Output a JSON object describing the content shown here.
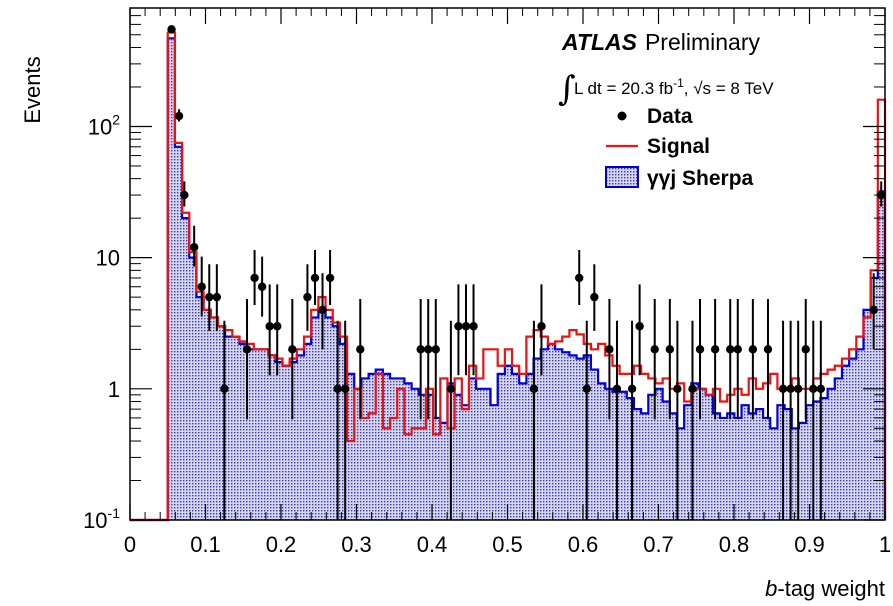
{
  "chart_data": {
    "type": "histogram",
    "xlabel_italic": "b",
    "xlabel_rest": "-tag weight",
    "ylabel": "Events",
    "xlim": [
      0,
      1
    ],
    "ylim": [
      0.1,
      800
    ],
    "log_y": true,
    "x_ticks": [
      "0",
      "0.1",
      "0.2",
      "0.3",
      "0.4",
      "0.5",
      "0.6",
      "0.7",
      "0.8",
      "0.9",
      "1"
    ],
    "y_ticks": [
      {
        "value": 0.1,
        "base": "10",
        "exp": "-1"
      },
      {
        "value": 1,
        "base": "1",
        "exp": ""
      },
      {
        "value": 10,
        "base": "10",
        "exp": ""
      },
      {
        "value": 100,
        "base": "10",
        "exp": "2"
      }
    ],
    "atlas_label": "ATLAS",
    "atlas_sublabel": "Preliminary",
    "lumi_prefix": "L dt = 20.3 fb",
    "lumi_exp": "-1",
    "lumi_suffix": ", √s = 8 TeV",
    "legend_position": "top-right",
    "legend": [
      {
        "name": "Data",
        "style": "marker"
      },
      {
        "name": "Signal",
        "style": "line"
      },
      {
        "name": "γγj Sherpa",
        "style": "fill"
      }
    ],
    "colors": {
      "data": "#000000",
      "signal": "#ee1111",
      "background": "#0000dd",
      "background_fill": "#a8a8d8"
    },
    "bin_edges": [
      0.05,
      1.0
    ],
    "n_bins": 100,
    "sherpa": [
      470,
      70,
      20,
      10,
      5,
      4,
      3.5,
      3,
      2.5,
      2.5,
      2.2,
      2,
      2,
      2,
      1.8,
      1.6,
      1.5,
      1.6,
      1.8,
      2.2,
      3.5,
      4,
      3.5,
      3,
      2.2,
      1.3,
      1,
      1.2,
      1.3,
      1.4,
      1.3,
      1.2,
      1.2,
      1.1,
      1.0,
      0.9,
      0.9,
      0.6,
      0.55,
      1.1,
      0.9,
      0.75,
      1.2,
      1.0,
      1.0,
      0.75,
      1.3,
      1.5,
      1.3,
      1.1,
      1.3,
      1.7,
      2.0,
      2.2,
      2.0,
      1.9,
      1.8,
      1.7,
      1.8,
      1.4,
      1.1,
      1.0,
      0.95,
      0.95,
      0.85,
      0.7,
      0.65,
      0.9,
      1.0,
      0.8,
      0.65,
      0.5,
      0.75,
      1.1,
      1.0,
      0.9,
      0.65,
      0.6,
      0.65,
      0.6,
      0.75,
      0.65,
      0.7,
      0.6,
      0.5,
      0.75,
      0.7,
      0.5,
      0.55,
      0.75,
      0.8,
      0.85,
      1.0,
      1.2,
      1.5,
      1.7,
      2.0,
      4.0,
      7.0,
      32
    ],
    "signal": [
      520,
      75,
      22,
      11,
      5.5,
      4,
      3.5,
      3,
      2.8,
      2.5,
      2.3,
      2.2,
      2,
      2,
      1.8,
      1.7,
      1.5,
      1.7,
      2.0,
      2.5,
      4.0,
      5.0,
      4.0,
      3.2,
      2.5,
      0.4,
      1.0,
      0.6,
      0.65,
      1.3,
      0.5,
      0.6,
      1.0,
      0.45,
      0.5,
      0.5,
      1.0,
      0.45,
      1.2,
      0.5,
      1.2,
      0.7,
      1.5,
      1.2,
      2.0,
      2.0,
      1.5,
      2.0,
      1.5,
      1.3,
      2.5,
      2.8,
      2.5,
      2.2,
      2.3,
      2.5,
      2.8,
      2.6,
      2.2,
      2.0,
      2.2,
      1.8,
      1.5,
      1.3,
      1.3,
      1.5,
      1.3,
      1.2,
      1.1,
      1.2,
      1.0,
      1.1,
      0.8,
      1.0,
      1.0,
      0.9,
      1.0,
      0.8,
      0.9,
      1.0,
      0.9,
      1.2,
      1.0,
      1.1,
      1.3,
      1.0,
      1.0,
      1.2,
      1.0,
      1.0,
      1.2,
      1.3,
      1.4,
      1.5,
      1.7,
      2.0,
      2.5,
      3.5,
      8.0,
      160
    ],
    "data_points": [
      {
        "x": 0.055,
        "y": 550
      },
      {
        "x": 0.065,
        "y": 120
      },
      {
        "x": 0.072,
        "y": 30
      },
      {
        "x": 0.085,
        "y": 12
      },
      {
        "x": 0.095,
        "y": 6
      },
      {
        "x": 0.105,
        "y": 5
      },
      {
        "x": 0.115,
        "y": 5
      },
      {
        "x": 0.125,
        "y": 1
      },
      {
        "x": 0.155,
        "y": 2
      },
      {
        "x": 0.165,
        "y": 7
      },
      {
        "x": 0.175,
        "y": 6
      },
      {
        "x": 0.185,
        "y": 3
      },
      {
        "x": 0.195,
        "y": 3
      },
      {
        "x": 0.215,
        "y": 2
      },
      {
        "x": 0.235,
        "y": 5
      },
      {
        "x": 0.245,
        "y": 7
      },
      {
        "x": 0.255,
        "y": 4
      },
      {
        "x": 0.265,
        "y": 7
      },
      {
        "x": 0.275,
        "y": 1
      },
      {
        "x": 0.285,
        "y": 1
      },
      {
        "x": 0.305,
        "y": 2
      },
      {
        "x": 0.385,
        "y": 2
      },
      {
        "x": 0.395,
        "y": 2
      },
      {
        "x": 0.405,
        "y": 2
      },
      {
        "x": 0.425,
        "y": 1
      },
      {
        "x": 0.435,
        "y": 3
      },
      {
        "x": 0.445,
        "y": 3
      },
      {
        "x": 0.455,
        "y": 3
      },
      {
        "x": 0.535,
        "y": 1
      },
      {
        "x": 0.545,
        "y": 3
      },
      {
        "x": 0.595,
        "y": 7
      },
      {
        "x": 0.605,
        "y": 1
      },
      {
        "x": 0.615,
        "y": 5
      },
      {
        "x": 0.635,
        "y": 2
      },
      {
        "x": 0.645,
        "y": 1
      },
      {
        "x": 0.665,
        "y": 1
      },
      {
        "x": 0.675,
        "y": 3
      },
      {
        "x": 0.695,
        "y": 2
      },
      {
        "x": 0.715,
        "y": 2
      },
      {
        "x": 0.725,
        "y": 1
      },
      {
        "x": 0.745,
        "y": 1
      },
      {
        "x": 0.755,
        "y": 2
      },
      {
        "x": 0.775,
        "y": 2
      },
      {
        "x": 0.795,
        "y": 2
      },
      {
        "x": 0.805,
        "y": 2
      },
      {
        "x": 0.825,
        "y": 2
      },
      {
        "x": 0.845,
        "y": 2
      },
      {
        "x": 0.865,
        "y": 1
      },
      {
        "x": 0.875,
        "y": 1
      },
      {
        "x": 0.885,
        "y": 1
      },
      {
        "x": 0.895,
        "y": 2
      },
      {
        "x": 0.905,
        "y": 1
      },
      {
        "x": 0.915,
        "y": 1
      },
      {
        "x": 0.985,
        "y": 4
      },
      {
        "x": 0.995,
        "y": 30
      }
    ]
  }
}
